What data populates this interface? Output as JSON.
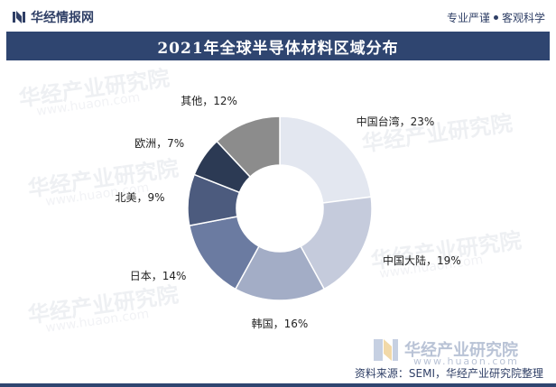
{
  "header": {
    "brand": "华经情报网",
    "tag1": "专业严谨",
    "tag2": "客观科学"
  },
  "title": "2021年全球半导体材料区域分布",
  "chart_data": {
    "type": "pie",
    "donut": true,
    "title": "2021年全球半导体材料区域分布",
    "slices": [
      {
        "label": "中国台湾",
        "value": 23,
        "display": "中国台湾，23%",
        "color": "#e3e7f0"
      },
      {
        "label": "中国大陆",
        "value": 19,
        "display": "中国大陆，19%",
        "color": "#c5cbdc"
      },
      {
        "label": "韩国",
        "value": 16,
        "display": "韩国，16%",
        "color": "#a3adc6"
      },
      {
        "label": "日本",
        "value": 14,
        "display": "日本，14%",
        "color": "#6b7ba1"
      },
      {
        "label": "北美",
        "value": 9,
        "display": "北美，9%",
        "color": "#4c5b7e"
      },
      {
        "label": "欧洲",
        "value": 7,
        "display": "欧洲，7%",
        "color": "#2c3a54"
      },
      {
        "label": "其他",
        "value": 12,
        "display": "其他，12%",
        "color": "#8c8c8c"
      }
    ]
  },
  "watermark": {
    "text": "华经产业研究院",
    "url": "www.huaon.com"
  },
  "footer": {
    "logo_text": "华经产业研究院",
    "logo_url": "www.huaon.com",
    "source": "资料来源：SEMI，华经产业研究院整理"
  }
}
